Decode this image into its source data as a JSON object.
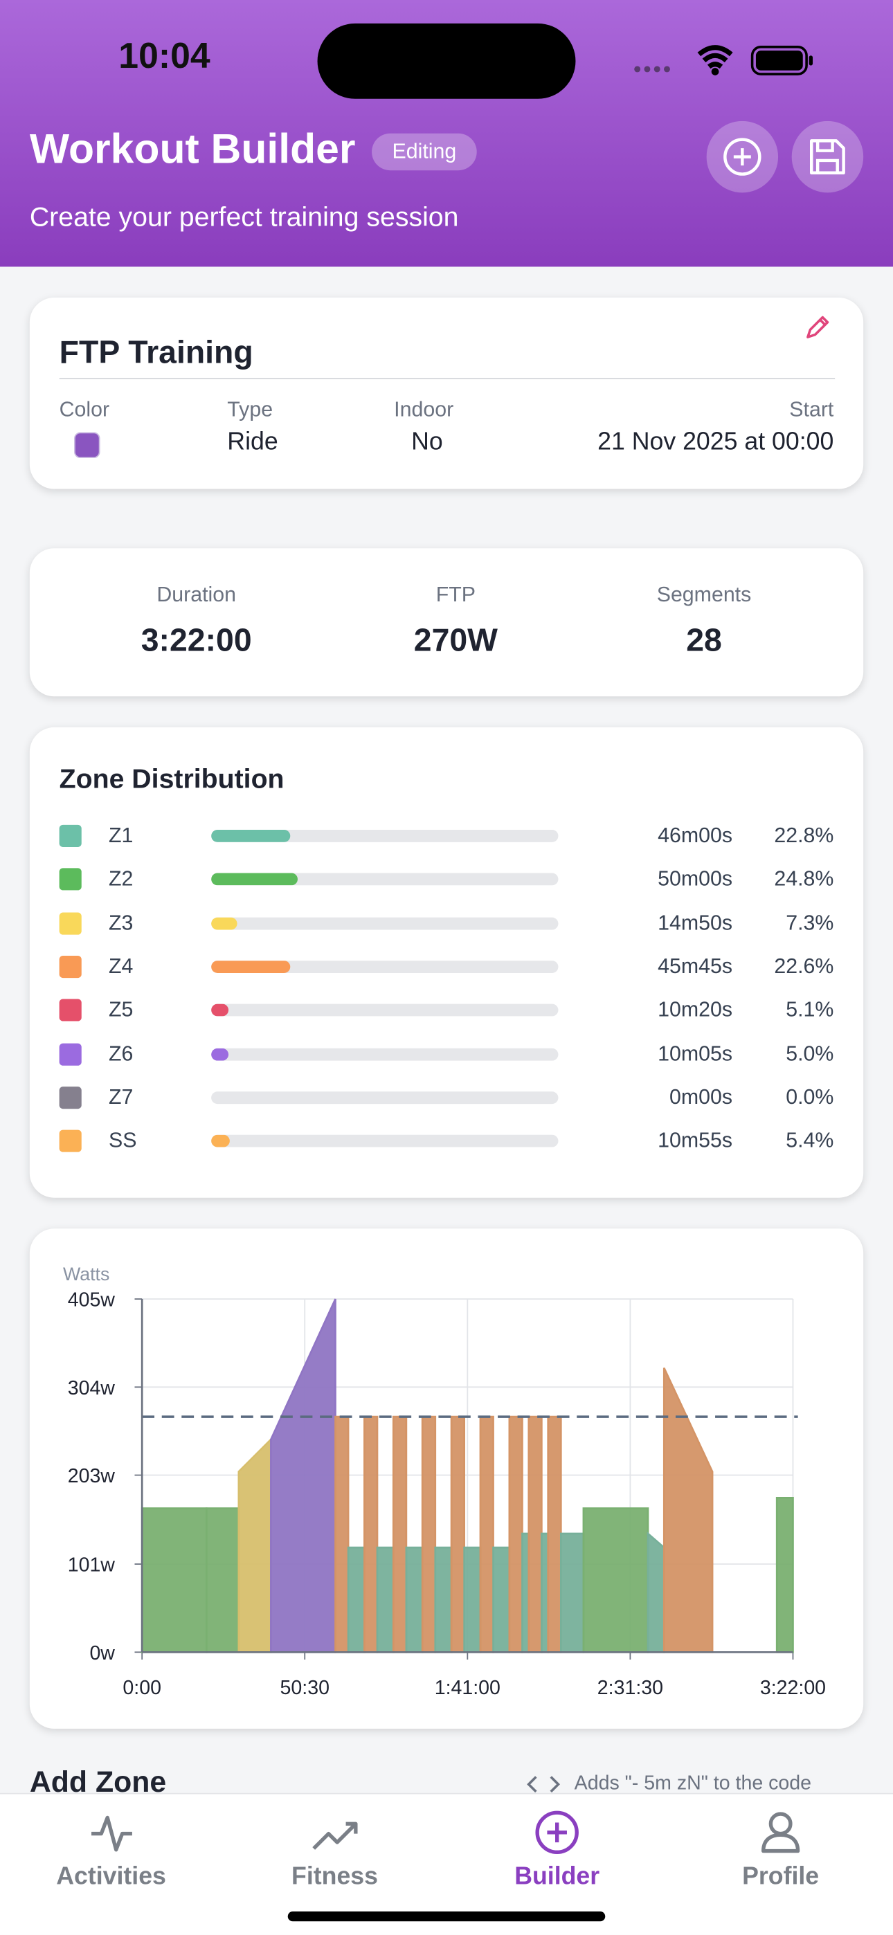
{
  "status_bar": {
    "time": "10:04"
  },
  "header": {
    "title": "Workout Builder",
    "badge": "Editing",
    "subtitle": "Create your perfect training session"
  },
  "workout": {
    "name": "FTP Training",
    "fields": [
      {
        "label": "Color",
        "color": "#8a55c0"
      },
      {
        "label": "Type",
        "value": "Ride"
      },
      {
        "label": "Indoor",
        "value": "No"
      },
      {
        "label": "Start",
        "value": "21 Nov 2025 at 00:00"
      }
    ]
  },
  "stats": [
    {
      "label": "Duration",
      "value": "3:22:00"
    },
    {
      "label": "FTP",
      "value": "270W"
    },
    {
      "label": "Segments",
      "value": "28"
    }
  ],
  "zone_distribution": {
    "title": "Zone Distribution",
    "zones": [
      {
        "name": "Z1",
        "color": "#6cc0a8",
        "duration": "46m00s",
        "percent": 22.8,
        "percent_label": "22.8%"
      },
      {
        "name": "Z2",
        "color": "#5cbb5c",
        "duration": "50m00s",
        "percent": 24.8,
        "percent_label": "24.8%"
      },
      {
        "name": "Z3",
        "color": "#f9d85a",
        "duration": "14m50s",
        "percent": 7.3,
        "percent_label": "7.3%"
      },
      {
        "name": "Z4",
        "color": "#f99a55",
        "duration": "45m45s",
        "percent": 22.6,
        "percent_label": "22.6%"
      },
      {
        "name": "Z5",
        "color": "#e5506a",
        "duration": "10m20s",
        "percent": 5.1,
        "percent_label": "5.1%"
      },
      {
        "name": "Z6",
        "color": "#9b6be0",
        "duration": "10m05s",
        "percent": 5.0,
        "percent_label": "5.0%"
      },
      {
        "name": "Z7",
        "color": "#85808e",
        "duration": "0m00s",
        "percent": 0,
        "percent_label": "0.0%"
      },
      {
        "name": "SS",
        "color": "#fbb155",
        "duration": "10m55s",
        "percent": 5.4,
        "percent_label": "5.4%"
      }
    ]
  },
  "chart_data": {
    "type": "area",
    "y_label": "Watts",
    "grid": true,
    "ftp_line": 270,
    "xlim": [
      0,
      12120
    ],
    "ylim": [
      0,
      405
    ],
    "xticks": [
      {
        "value": 0,
        "label": "0:00"
      },
      {
        "value": 3030,
        "label": "50:30"
      },
      {
        "value": 6060,
        "label": "1:41:00"
      },
      {
        "value": 9090,
        "label": "2:31:30"
      },
      {
        "value": 12120,
        "label": "3:22:00"
      }
    ],
    "yticks": [
      {
        "value": 0,
        "label": "0w"
      },
      {
        "value": 101,
        "label": "101w"
      },
      {
        "value": 203,
        "label": "203w"
      },
      {
        "value": 304,
        "label": "304w"
      },
      {
        "value": 405,
        "label": "405w"
      }
    ],
    "segments": [
      {
        "start": 0,
        "end": 1200,
        "from": 165,
        "to": 165,
        "color": "#8fcf85"
      },
      {
        "start": 1200,
        "end": 1800,
        "from": 165,
        "to": 165,
        "color": "#8fcf85"
      },
      {
        "start": 1800,
        "end": 2400,
        "from": 207,
        "to": 244,
        "color": "#fde07f"
      },
      {
        "start": 2400,
        "end": 3600,
        "from": 244,
        "to": 405,
        "color": "#a98ae6"
      },
      {
        "start": 3600,
        "end": 3840,
        "from": 270,
        "to": 270,
        "color": "#f9ae78"
      },
      {
        "start": 3840,
        "end": 4140,
        "from": 120,
        "to": 120,
        "color": "#8ccfb5"
      },
      {
        "start": 4140,
        "end": 4380,
        "from": 270,
        "to": 270,
        "color": "#f9ae78"
      },
      {
        "start": 4380,
        "end": 4680,
        "from": 120,
        "to": 120,
        "color": "#8ccfb5"
      },
      {
        "start": 4680,
        "end": 4920,
        "from": 270,
        "to": 270,
        "color": "#f9ae78"
      },
      {
        "start": 4920,
        "end": 5220,
        "from": 120,
        "to": 120,
        "color": "#8ccfb5"
      },
      {
        "start": 5220,
        "end": 5460,
        "from": 270,
        "to": 270,
        "color": "#f9ae78"
      },
      {
        "start": 5460,
        "end": 5760,
        "from": 120,
        "to": 120,
        "color": "#8ccfb5"
      },
      {
        "start": 5760,
        "end": 6000,
        "from": 270,
        "to": 270,
        "color": "#f9ae78"
      },
      {
        "start": 6000,
        "end": 6300,
        "from": 120,
        "to": 120,
        "color": "#8ccfb5"
      },
      {
        "start": 6300,
        "end": 6540,
        "from": 270,
        "to": 270,
        "color": "#f9ae78"
      },
      {
        "start": 6540,
        "end": 6840,
        "from": 120,
        "to": 120,
        "color": "#8ccfb5"
      },
      {
        "start": 6840,
        "end": 7080,
        "from": 270,
        "to": 270,
        "color": "#f9ae78"
      },
      {
        "start": 7080,
        "end": 7200,
        "from": 136,
        "to": 136,
        "color": "#8ccfb5"
      },
      {
        "start": 7200,
        "end": 7440,
        "from": 270,
        "to": 270,
        "color": "#f9ae78"
      },
      {
        "start": 7440,
        "end": 7560,
        "from": 136,
        "to": 136,
        "color": "#8ccfb5"
      },
      {
        "start": 7560,
        "end": 7800,
        "from": 270,
        "to": 270,
        "color": "#f9ae78"
      },
      {
        "start": 7800,
        "end": 8220,
        "from": 136,
        "to": 136,
        "color": "#8ccfb5"
      },
      {
        "start": 8220,
        "end": 9420,
        "from": 165,
        "to": 165,
        "color": "#8fcf85"
      },
      {
        "start": 9420,
        "end": 9720,
        "from": 136,
        "to": 120,
        "color": "#8ccfb5"
      },
      {
        "start": 9720,
        "end": 10620,
        "from": 326,
        "to": 207,
        "color": "#f9ae78"
      },
      {
        "start": 11820,
        "end": 12120,
        "from": 177,
        "to": 177,
        "color": "#8fcf85"
      }
    ]
  },
  "add_zone": {
    "title": "Add Zone",
    "hint": "Adds \"- 5m zN\" to the code"
  },
  "tab_bar": {
    "tabs": [
      {
        "label": "Activities",
        "active": false
      },
      {
        "label": "Fitness",
        "active": false
      },
      {
        "label": "Builder",
        "active": true
      },
      {
        "label": "Profile",
        "active": false
      }
    ]
  }
}
